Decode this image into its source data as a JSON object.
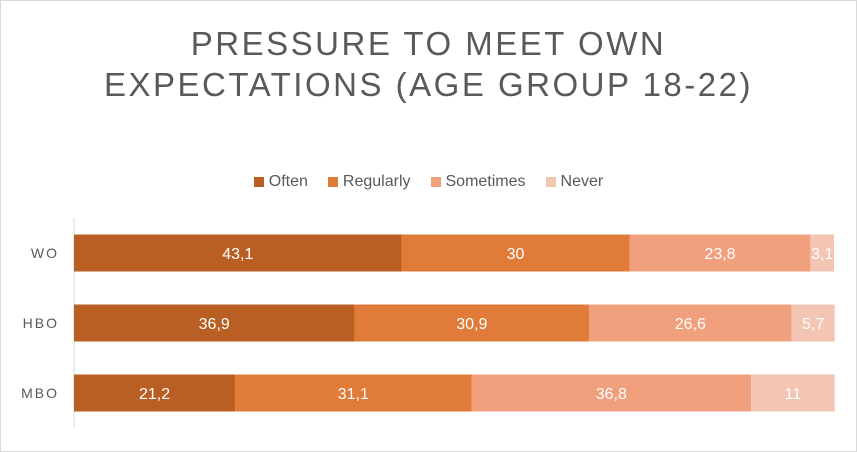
{
  "chart_data": {
    "type": "bar",
    "orientation": "horizontal",
    "stacked": true,
    "title": "PRESSURE TO MEET OWN EXPECTATIONS (AGE GROUP 18-22)",
    "title_lines": [
      "PRESSURE TO MEET OWN",
      "EXPECTATIONS (AGE GROUP 18-22)"
    ],
    "categories": [
      "WO",
      "HBO",
      "MBO"
    ],
    "series": [
      {
        "name": "Often",
        "values": [
          43.1,
          36.9,
          21.2
        ],
        "labels": [
          "43,1",
          "36,9",
          "21,2"
        ],
        "color": "#BA5F24"
      },
      {
        "name": "Regularly",
        "values": [
          30,
          30.9,
          31.1
        ],
        "labels": [
          "30",
          "30,9",
          "31,1"
        ],
        "color": "#E07B39"
      },
      {
        "name": "Sometimes",
        "values": [
          23.8,
          26.6,
          36.8
        ],
        "labels": [
          "23,8",
          "26,6",
          "36,8"
        ],
        "color": "#F0A07C"
      },
      {
        "name": "Never",
        "values": [
          3.1,
          5.7,
          11
        ],
        "labels": [
          "3,1",
          "5,7",
          "11"
        ],
        "color": "#F5C5B4"
      }
    ],
    "xlim": [
      0,
      100
    ],
    "legend_position": "top",
    "grid": false
  }
}
